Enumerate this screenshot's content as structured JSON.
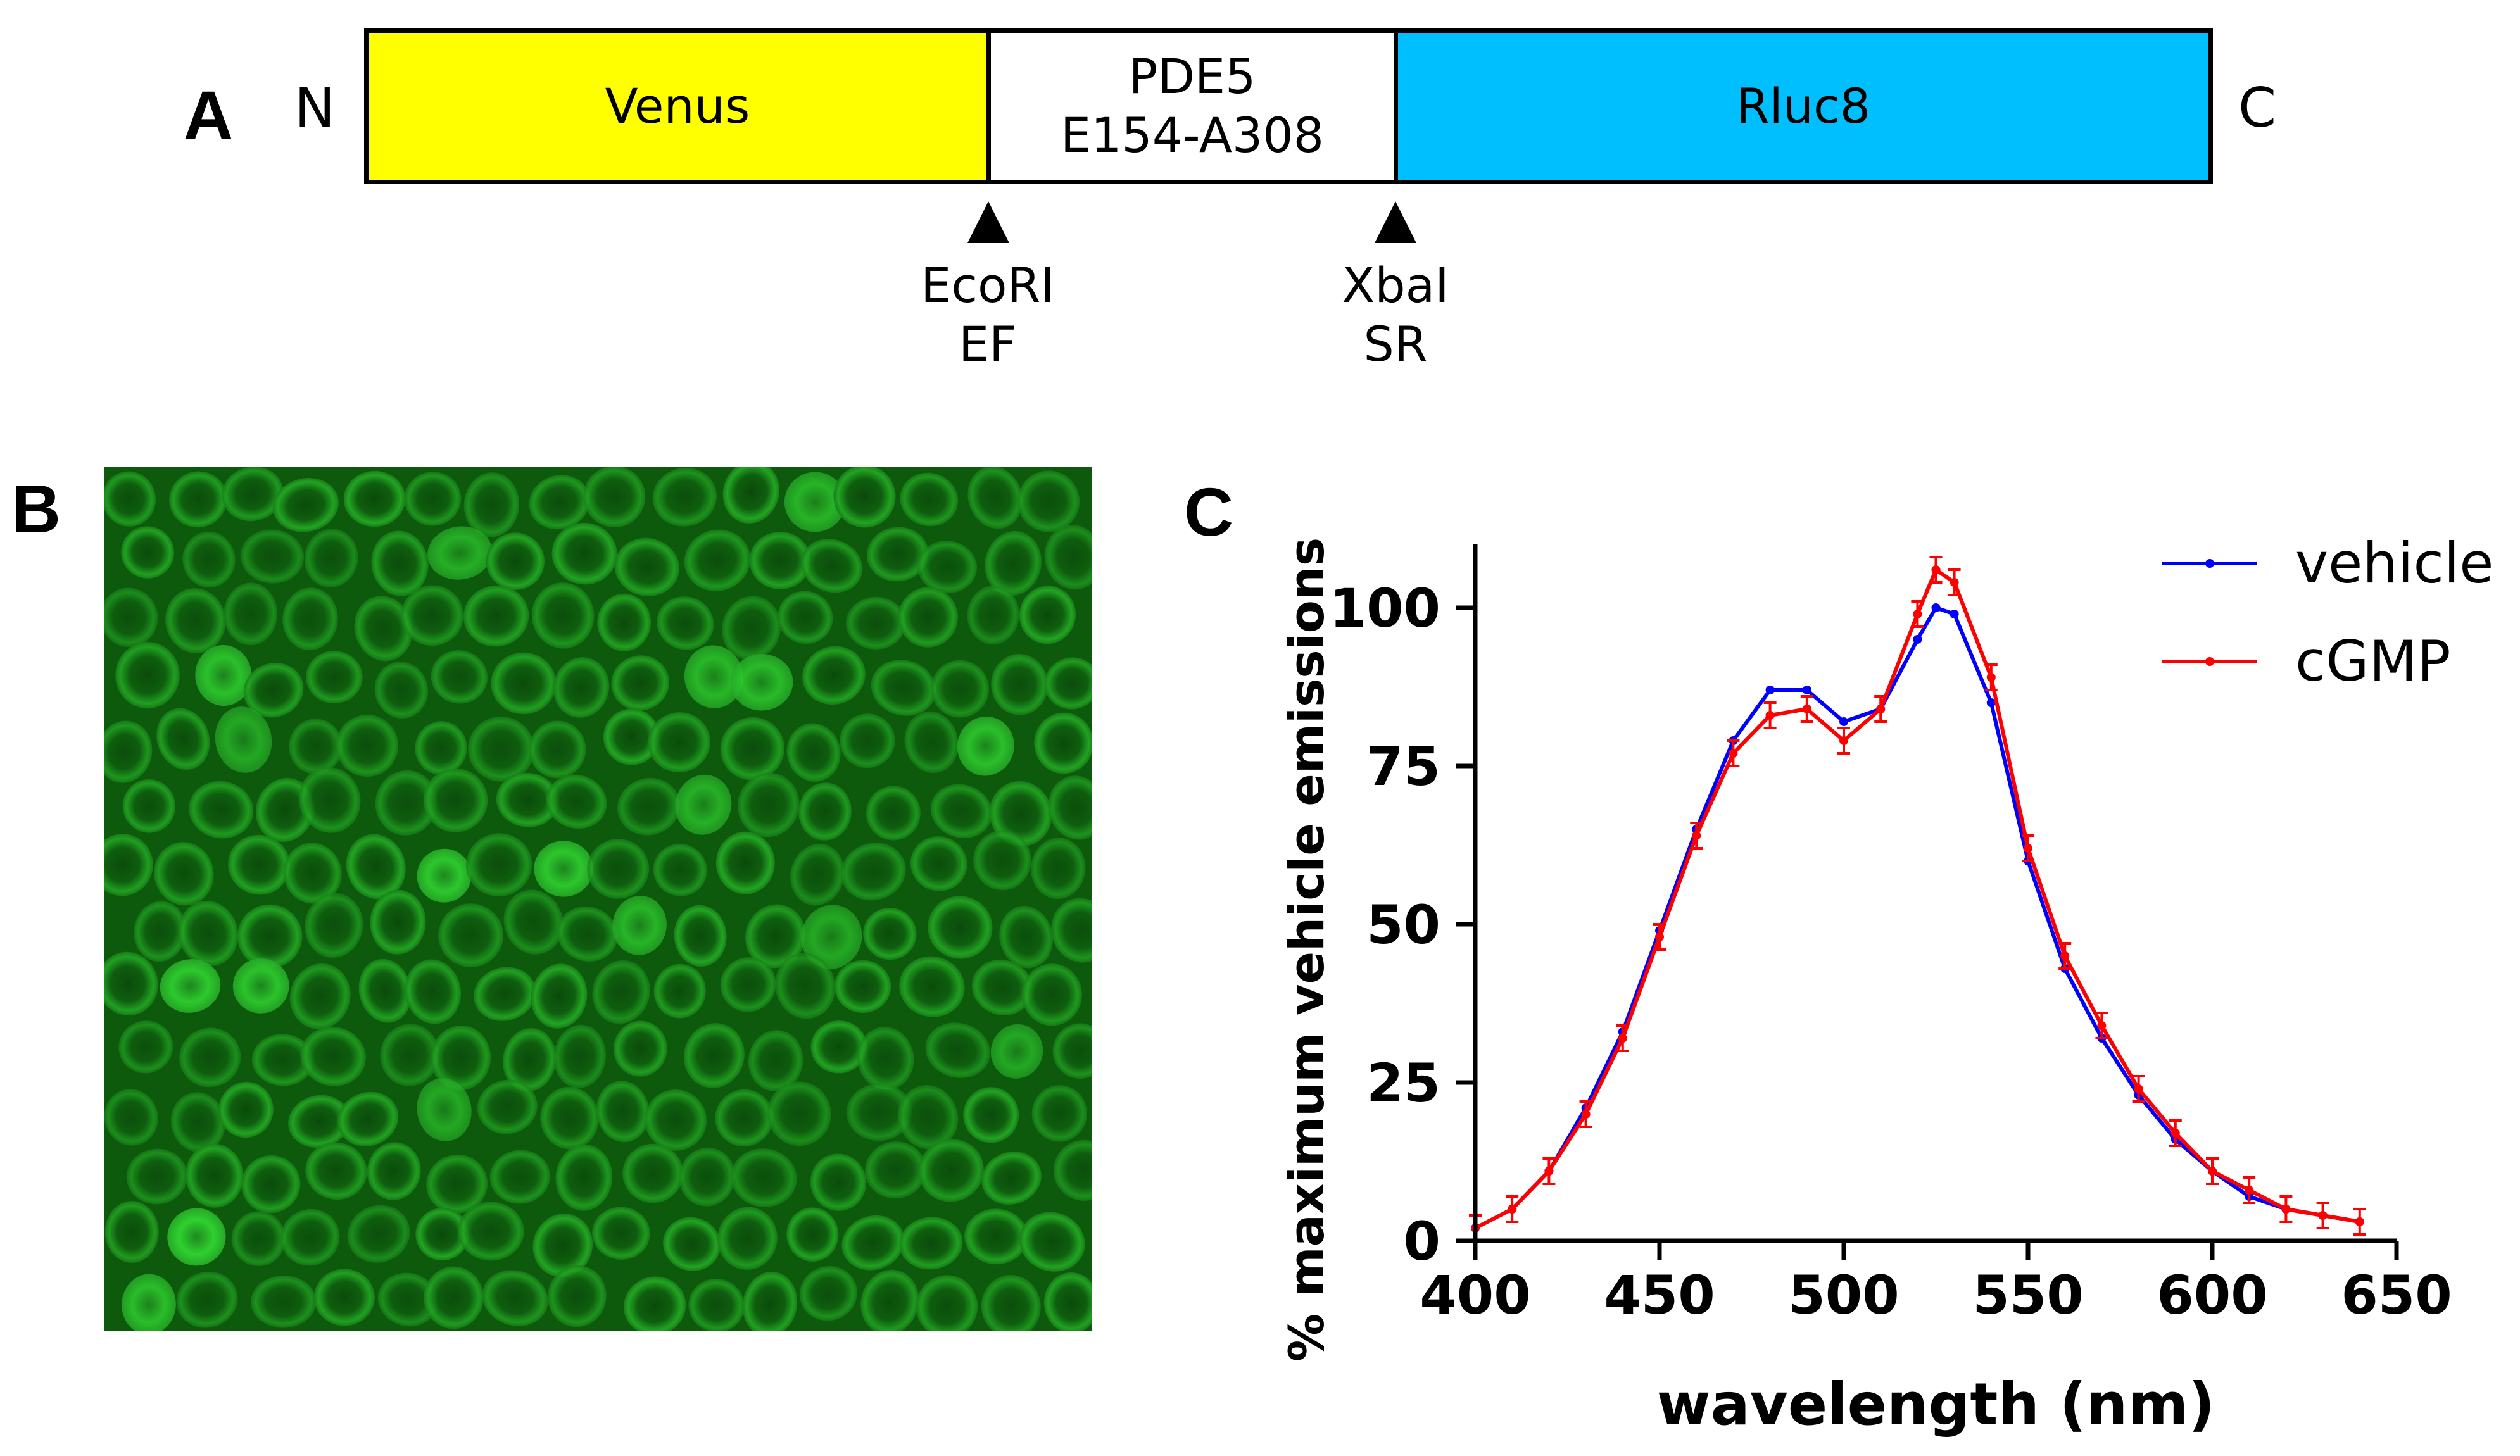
{
  "panels": {
    "a": "A",
    "b": "B",
    "c": "C"
  },
  "construct": {
    "n_term": "N",
    "c_term": "C",
    "segments": [
      {
        "line1": "Venus",
        "line2": "",
        "color": "#ffff00"
      },
      {
        "line1": "PDE5",
        "line2": "E154-A308",
        "color": "#ffffff"
      },
      {
        "line1": "Rluc8",
        "line2": "",
        "color": "#00bfff"
      }
    ],
    "sites": [
      {
        "enzyme": "EcoRI",
        "residues": "EF"
      },
      {
        "enzyme": "XbaI",
        "residues": "SR"
      }
    ]
  },
  "micrograph": {
    "description_icon": "fluorescence-micrograph-icon",
    "tint": "#1fbf1f"
  },
  "chart_data": {
    "type": "line",
    "xlabel": "wavelength (nm)",
    "ylabel": "% maximum vehicle emissions",
    "xlim": [
      400,
      650
    ],
    "ylim": [
      0,
      110
    ],
    "xticks": [
      400,
      450,
      500,
      550,
      600,
      650
    ],
    "yticks": [
      0,
      25,
      50,
      75,
      100
    ],
    "legend_position": "top-right",
    "x": [
      400,
      410,
      420,
      430,
      440,
      450,
      460,
      470,
      480,
      490,
      500,
      510,
      520,
      525,
      530,
      540,
      550,
      560,
      570,
      580,
      590,
      600,
      610,
      620,
      630,
      640
    ],
    "series": [
      {
        "name": "vehicle",
        "color": "#0000ff",
        "values": [
          2,
          5,
          11,
          21,
          33,
          49,
          65,
          79,
          87,
          87,
          82,
          84,
          95,
          100,
          99,
          85,
          60,
          43,
          32,
          23,
          16,
          11,
          7,
          5,
          4,
          3
        ]
      },
      {
        "name": "cGMP",
        "color": "#ff0000",
        "values": [
          2,
          5,
          11,
          20,
          32,
          48,
          64,
          77,
          83,
          84,
          79,
          84,
          99,
          106,
          104,
          89,
          62,
          45,
          34,
          24,
          17,
          11,
          8,
          5,
          4,
          3
        ],
        "error_bar": 2
      }
    ]
  }
}
